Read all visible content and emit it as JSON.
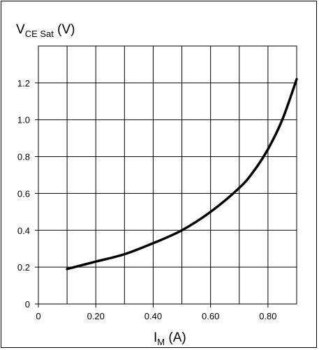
{
  "chart_data": {
    "type": "line",
    "title": {
      "main": "V",
      "subscript": "CE Sat",
      "unit": " (V)"
    },
    "xlabel": {
      "main": "I",
      "subscript": "M",
      "unit": " (A)"
    },
    "ylabel": "",
    "xlim": [
      0,
      0.9
    ],
    "ylim": [
      0,
      1.4
    ],
    "xticks": [
      {
        "value": 0,
        "label": "0"
      },
      {
        "value": 0.2,
        "label": "0.20"
      },
      {
        "value": 0.4,
        "label": "0.40"
      },
      {
        "value": 0.6,
        "label": "0.60"
      },
      {
        "value": 0.8,
        "label": "0.80"
      }
    ],
    "yticks": [
      {
        "value": 0,
        "label": "0"
      },
      {
        "value": 0.2,
        "label": "0.2"
      },
      {
        "value": 0.4,
        "label": "0.4"
      },
      {
        "value": 0.6,
        "label": "0.6"
      },
      {
        "value": 0.8,
        "label": "0.8"
      },
      {
        "value": 1.0,
        "label": "1.0"
      },
      {
        "value": 1.2,
        "label": "1.2"
      }
    ],
    "x_gridlines": [
      0.1,
      0.2,
      0.3,
      0.4,
      0.5,
      0.6,
      0.7,
      0.8
    ],
    "y_gridlines": [
      0.2,
      0.4,
      0.6,
      0.8,
      1.0,
      1.2
    ],
    "grid": true,
    "series": [
      {
        "color": "#000000",
        "x": [
          0.1,
          0.2,
          0.3,
          0.4,
          0.5,
          0.6,
          0.7,
          0.75,
          0.8,
          0.85,
          0.9
        ],
        "y": [
          0.19,
          0.23,
          0.27,
          0.33,
          0.4,
          0.5,
          0.63,
          0.72,
          0.84,
          1.0,
          1.22
        ]
      }
    ]
  }
}
